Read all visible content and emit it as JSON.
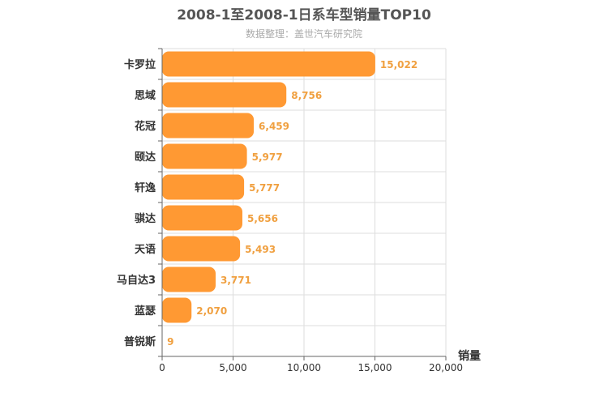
{
  "chart_data": {
    "type": "bar",
    "orientation": "horizontal",
    "title": "2008-1至2008-1日系车型销量TOP10",
    "subtitle": "数据整理：盖世汽车研究院",
    "categories": [
      "卡罗拉",
      "思域",
      "花冠",
      "颐达",
      "轩逸",
      "骐达",
      "天语",
      "马自达3",
      "蓝瑟",
      "普锐斯"
    ],
    "values": [
      15022,
      8756,
      6459,
      5977,
      5777,
      5656,
      5493,
      3771,
      2070,
      9
    ],
    "value_labels": [
      "15,022",
      "8,756",
      "6,459",
      "5,977",
      "5,777",
      "5,656",
      "5,493",
      "3,771",
      "2,070",
      "9"
    ],
    "xlabel": "销量",
    "ylabel": "",
    "xlim": [
      0,
      20000
    ],
    "x_ticks": [
      0,
      5000,
      10000,
      15000,
      20000
    ],
    "x_tick_labels": [
      "0",
      "5,000",
      "10,000",
      "15,000",
      "20,000"
    ],
    "grid": true,
    "bar_color": "#ff9933",
    "label_color": "#f0a040"
  }
}
